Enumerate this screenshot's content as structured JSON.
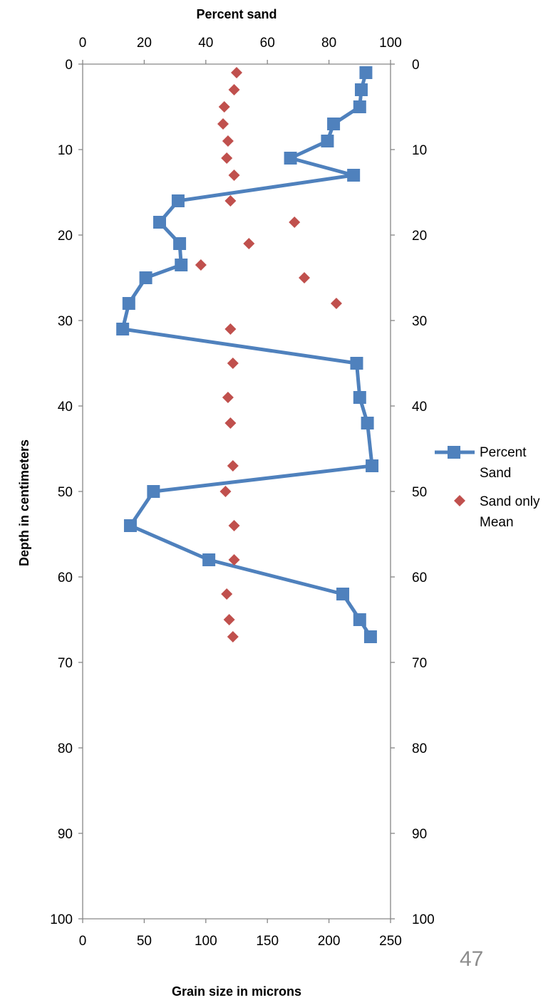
{
  "page_number": "47",
  "chart_data": {
    "type": "scatter",
    "top_axis": {
      "label": "Percent sand",
      "range": [
        0,
        100
      ],
      "ticks": [
        "0",
        "20",
        "40",
        "60",
        "80",
        "100"
      ]
    },
    "bottom_axis": {
      "label": "Grain size in microns",
      "range": [
        0,
        250
      ],
      "ticks": [
        "0",
        "50",
        "100",
        "150",
        "200",
        "250"
      ]
    },
    "left_axis": {
      "label": "Depth in centimeters",
      "range": [
        0,
        100
      ],
      "reversed": true,
      "ticks": [
        "0",
        "10",
        "20",
        "30",
        "40",
        "50",
        "60",
        "70",
        "80",
        "90",
        "100"
      ]
    },
    "right_axis": {
      "range": [
        0,
        100
      ],
      "reversed": true,
      "ticks": [
        "0",
        "10",
        "20",
        "30",
        "40",
        "50",
        "60",
        "70",
        "80",
        "90",
        "100"
      ]
    },
    "grid": false,
    "legend_position": "right",
    "series": [
      {
        "name": "Percent Sand",
        "kind": "line-square-markers",
        "axis": "top",
        "color": "#4f81bd",
        "points": [
          {
            "x": 92,
            "y": 1
          },
          {
            "x": 90.5,
            "y": 3
          },
          {
            "x": 90,
            "y": 5
          },
          {
            "x": 81.5,
            "y": 7
          },
          {
            "x": 79.5,
            "y": 9
          },
          {
            "x": 67.5,
            "y": 11
          },
          {
            "x": 88,
            "y": 13
          },
          {
            "x": 31,
            "y": 16
          },
          {
            "x": 25,
            "y": 18.5
          },
          {
            "x": 31.5,
            "y": 21
          },
          {
            "x": 32,
            "y": 23.5
          },
          {
            "x": 20.5,
            "y": 25
          },
          {
            "x": 15,
            "y": 28
          },
          {
            "x": 13,
            "y": 31
          },
          {
            "x": 89,
            "y": 35
          },
          {
            "x": 90,
            "y": 39
          },
          {
            "x": 92.5,
            "y": 42
          },
          {
            "x": 94,
            "y": 47
          },
          {
            "x": 23,
            "y": 50
          },
          {
            "x": 15.5,
            "y": 54
          },
          {
            "x": 41,
            "y": 58
          },
          {
            "x": 84.5,
            "y": 62
          },
          {
            "x": 90,
            "y": 65
          },
          {
            "x": 93.5,
            "y": 67
          }
        ]
      },
      {
        "name": "Sand only Mean",
        "kind": "scatter-diamond-markers",
        "axis": "bottom",
        "color": "#c0504d",
        "points": [
          {
            "x": 125,
            "y": 1
          },
          {
            "x": 123,
            "y": 3
          },
          {
            "x": 115,
            "y": 5
          },
          {
            "x": 114,
            "y": 7
          },
          {
            "x": 118,
            "y": 9
          },
          {
            "x": 117,
            "y": 11
          },
          {
            "x": 123,
            "y": 13
          },
          {
            "x": 120,
            "y": 16
          },
          {
            "x": 172,
            "y": 18.5
          },
          {
            "x": 135,
            "y": 21
          },
          {
            "x": 96,
            "y": 23.5
          },
          {
            "x": 180,
            "y": 25
          },
          {
            "x": 206,
            "y": 28
          },
          {
            "x": 120,
            "y": 31
          },
          {
            "x": 122,
            "y": 35
          },
          {
            "x": 118,
            "y": 39
          },
          {
            "x": 120,
            "y": 42
          },
          {
            "x": 122,
            "y": 47
          },
          {
            "x": 116,
            "y": 50
          },
          {
            "x": 123,
            "y": 54
          },
          {
            "x": 123,
            "y": 58
          },
          {
            "x": 117,
            "y": 62
          },
          {
            "x": 119,
            "y": 65
          },
          {
            "x": 122,
            "y": 67
          }
        ]
      }
    ],
    "legend": [
      {
        "line1": "Percent",
        "line2": "Sand"
      },
      {
        "line1": "Sand only",
        "line2": "Mean"
      }
    ]
  }
}
